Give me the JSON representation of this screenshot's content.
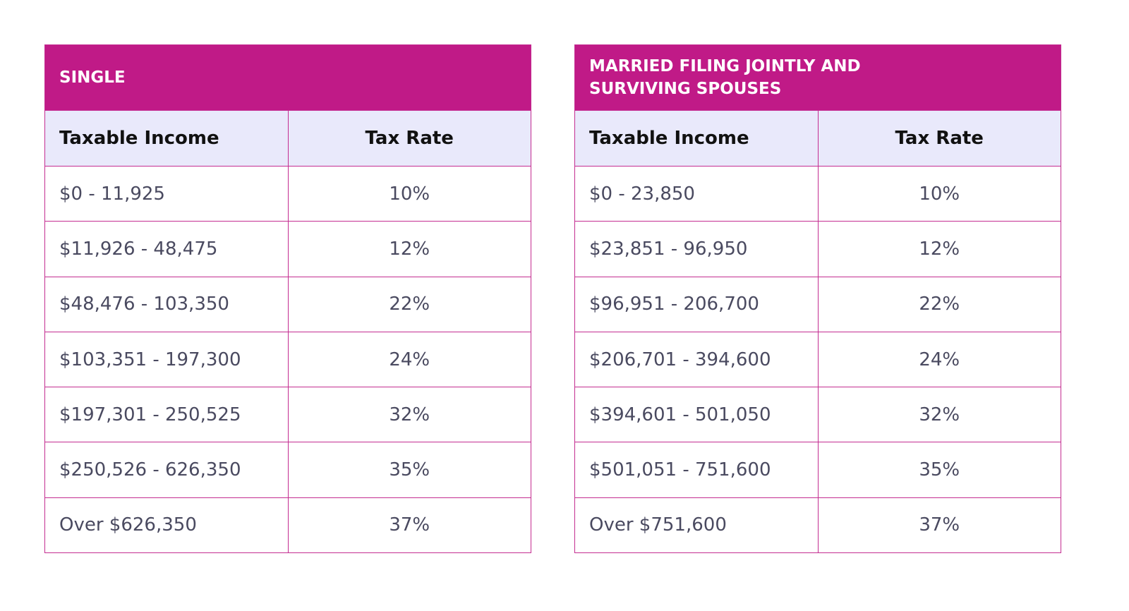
{
  "tables": [
    {
      "title": "SINGLE",
      "headers": [
        "Taxable Income",
        "Tax Rate"
      ],
      "rows": [
        [
          "$0 - 11,925",
          "10%"
        ],
        [
          "$11,926 - 48,475",
          "12%"
        ],
        [
          "$48,476 - 103,350",
          "22%"
        ],
        [
          "$103,351 - 197,300",
          "24%"
        ],
        [
          "$197,301 - 250,525",
          "32%"
        ],
        [
          "$250,526 - 626,350",
          "35%"
        ],
        [
          "Over $626,350",
          "37%"
        ]
      ]
    },
    {
      "title": "MARRIED FILING JOINTLY AND SURVIVING SPOUSES",
      "headers": [
        "Taxable Income",
        "Tax Rate"
      ],
      "rows": [
        [
          "$0 - 23,850",
          "10%"
        ],
        [
          "$23,851 - 96,950",
          "12%"
        ],
        [
          "$96,951 - 206,700",
          "22%"
        ],
        [
          "$206,701 - 394,600",
          "24%"
        ],
        [
          "$394,601 - 501,050",
          "32%"
        ],
        [
          "$501,051 - 751,600",
          "35%"
        ],
        [
          "Over $751,600",
          "37%"
        ]
      ]
    }
  ]
}
